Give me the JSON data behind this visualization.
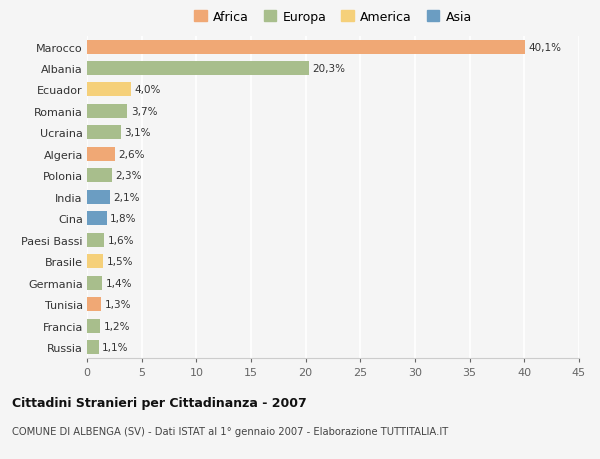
{
  "countries": [
    "Marocco",
    "Albania",
    "Ecuador",
    "Romania",
    "Ucraina",
    "Algeria",
    "Polonia",
    "India",
    "Cina",
    "Paesi Bassi",
    "Brasile",
    "Germania",
    "Tunisia",
    "Francia",
    "Russia"
  ],
  "values": [
    40.1,
    20.3,
    4.0,
    3.7,
    3.1,
    2.6,
    2.3,
    2.1,
    1.8,
    1.6,
    1.5,
    1.4,
    1.3,
    1.2,
    1.1
  ],
  "labels": [
    "40,1%",
    "20,3%",
    "4,0%",
    "3,7%",
    "3,1%",
    "2,6%",
    "2,3%",
    "2,1%",
    "1,8%",
    "1,6%",
    "1,5%",
    "1,4%",
    "1,3%",
    "1,2%",
    "1,1%"
  ],
  "continents": [
    "Africa",
    "Europa",
    "America",
    "Europa",
    "Europa",
    "Africa",
    "Europa",
    "Asia",
    "Asia",
    "Europa",
    "America",
    "Europa",
    "Africa",
    "Europa",
    "Europa"
  ],
  "colors": {
    "Africa": "#F0A875",
    "Europa": "#A8BE8C",
    "America": "#F5D07A",
    "Asia": "#6B9DC2"
  },
  "legend_order": [
    "Africa",
    "Europa",
    "America",
    "Asia"
  ],
  "title": "Cittadini Stranieri per Cittadinanza - 2007",
  "subtitle": "COMUNE DI ALBENGA (SV) - Dati ISTAT al 1° gennaio 2007 - Elaborazione TUTTITALIA.IT",
  "xlim": [
    0,
    45
  ],
  "xticks": [
    0,
    5,
    10,
    15,
    20,
    25,
    30,
    35,
    40,
    45
  ],
  "background_color": "#f5f5f5",
  "grid_color": "#ffffff"
}
